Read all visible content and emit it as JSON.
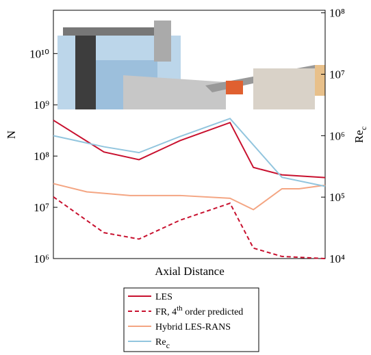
{
  "chart_data": {
    "type": "line",
    "xlabel": "Axial Distance",
    "ylabel": "N",
    "y2label": "Re_c",
    "xlim": [
      0,
      100
    ],
    "ylim": [
      1000000,
      70000000000
    ],
    "y2lim": [
      10000,
      110000000
    ],
    "log_y": true,
    "log_y2": true,
    "yticks": [
      {
        "value": 1000000,
        "label": "10⁶"
      },
      {
        "value": 10000000,
        "label": "10⁷"
      },
      {
        "value": 100000000,
        "label": "10⁸"
      },
      {
        "value": 1000000000,
        "label": "10⁹"
      },
      {
        "value": 10000000000,
        "label": "10¹⁰"
      }
    ],
    "y2ticks": [
      {
        "value": 10000,
        "label": "10⁴"
      },
      {
        "value": 100000,
        "label": "10⁵"
      },
      {
        "value": 1000000,
        "label": "10⁶"
      },
      {
        "value": 10000000,
        "label": "10⁷"
      },
      {
        "value": 100000000,
        "label": "10⁸"
      }
    ],
    "legend": "below",
    "series": [
      {
        "name": "LES",
        "color": "#c8102e",
        "dash": "solid",
        "x": [
          0,
          18.6,
          31.5,
          46.6,
          65,
          73.6,
          84.1,
          100
        ],
        "values": [
          500000000,
          120000000,
          85000000,
          200000000,
          450000000,
          60000000,
          43000000,
          38000000
        ]
      },
      {
        "name": "FR, 4th order predicted",
        "color": "#c8102e",
        "dash": "dashed",
        "x": [
          0,
          18.6,
          31.5,
          46.6,
          65,
          73.6,
          84.1,
          100
        ],
        "values": [
          16000000,
          3200000,
          2400000,
          5600000,
          12000000,
          1600000,
          1100000,
          1000000
        ]
      },
      {
        "name": "Hybrid LES-RANS",
        "color": "#f4a582",
        "dash": "solid",
        "x": [
          0,
          12.3,
          28.2,
          46.6,
          65,
          73.6,
          84.1,
          90.4,
          100
        ],
        "values": [
          29000000,
          20000000,
          17000000,
          17000000,
          15000000,
          9000000,
          23000000,
          23000000,
          27000000
        ]
      },
      {
        "name": "Re_c",
        "color": "#92c5de",
        "dash": "solid",
        "axis": "y2",
        "x": [
          0,
          18.6,
          31.5,
          46.6,
          65,
          84.1,
          100
        ],
        "values": [
          1000000,
          660000,
          530000,
          970000,
          1900000,
          210000,
          150000
        ]
      }
    ]
  }
}
